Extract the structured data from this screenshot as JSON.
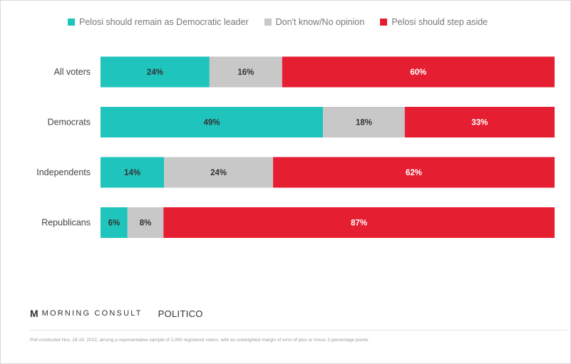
{
  "chart_data": {
    "type": "bar",
    "orientation": "horizontal",
    "stacked": true,
    "categories": [
      "All voters",
      "Democrats",
      "Independents",
      "Republicans"
    ],
    "series": [
      {
        "name": "Pelosi should remain as Democratic leader",
        "color": "#1fc4bc",
        "values": [
          24,
          49,
          14,
          6
        ]
      },
      {
        "name": "Don't know/No opinion",
        "color": "#c8c8c8",
        "values": [
          16,
          18,
          24,
          8
        ]
      },
      {
        "name": "Pelosi should step aside",
        "color": "#e61e32",
        "values": [
          60,
          33,
          62,
          87
        ]
      }
    ],
    "value_suffix": "%",
    "legend_position": "top",
    "grid": false
  },
  "footer": {
    "brand_mark": "M",
    "brand_name": "MORNING CONSULT",
    "partner": "POLITICO",
    "note": "Poll conducted Nov. 18-19, 2022, among a representative sample of 2,000 registered voters, with an unweighted margin of error of plus or minus 2 percentage points."
  }
}
